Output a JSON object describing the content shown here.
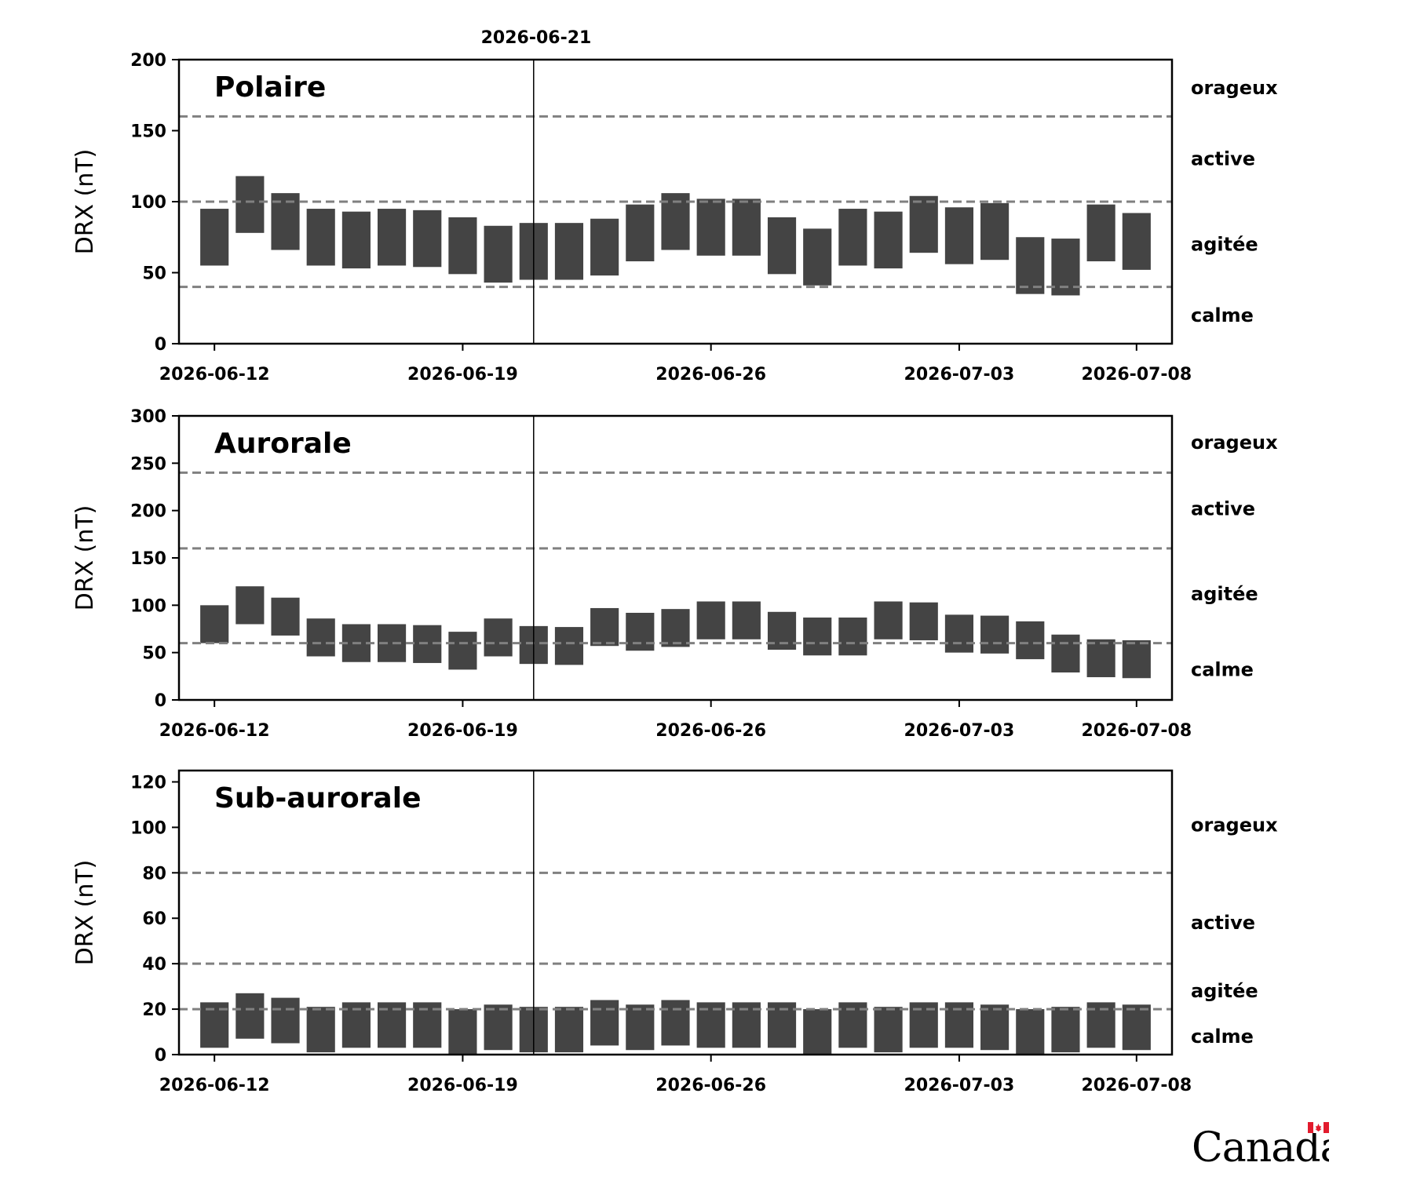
{
  "header": {
    "marker_label": "2026-06-21"
  },
  "brand": {
    "wordmark_text": "Canada",
    "flag_color": "#e21b2d"
  },
  "style": {
    "bar_color": "#444444",
    "threshold_color": "#808080"
  },
  "chart_data": [
    {
      "type": "bar",
      "title": "Polaire",
      "ylabel": "DRX (nT)",
      "ylim": [
        0,
        200
      ],
      "yticks": [
        0,
        50,
        100,
        150,
        200
      ],
      "xlim": [
        "2026-06-11",
        "2026-07-09"
      ],
      "xticks": [
        "2026-06-12",
        "2026-06-19",
        "2026-06-26",
        "2026-07-03",
        "2026-07-08"
      ],
      "marker_date": "2026-06-21",
      "thresholds": [
        40,
        100,
        160
      ],
      "zones": [
        {
          "label": "orageux",
          "value": 180
        },
        {
          "label": "active",
          "value": 130
        },
        {
          "label": "agitée",
          "value": 70
        },
        {
          "label": "calme",
          "value": 20
        }
      ],
      "bars": [
        {
          "date": "2026-06-12",
          "low": 55,
          "high": 95
        },
        {
          "date": "2026-06-13",
          "low": 78,
          "high": 118
        },
        {
          "date": "2026-06-14",
          "low": 66,
          "high": 106
        },
        {
          "date": "2026-06-15",
          "low": 55,
          "high": 95
        },
        {
          "date": "2026-06-16",
          "low": 53,
          "high": 93
        },
        {
          "date": "2026-06-17",
          "low": 55,
          "high": 95
        },
        {
          "date": "2026-06-18",
          "low": 54,
          "high": 94
        },
        {
          "date": "2026-06-19",
          "low": 49,
          "high": 89
        },
        {
          "date": "2026-06-20",
          "low": 43,
          "high": 83
        },
        {
          "date": "2026-06-21",
          "low": 45,
          "high": 85
        },
        {
          "date": "2026-06-22",
          "low": 45,
          "high": 85
        },
        {
          "date": "2026-06-23",
          "low": 48,
          "high": 88
        },
        {
          "date": "2026-06-24",
          "low": 58,
          "high": 98
        },
        {
          "date": "2026-06-25",
          "low": 66,
          "high": 106
        },
        {
          "date": "2026-06-26",
          "low": 62,
          "high": 102
        },
        {
          "date": "2026-06-27",
          "low": 62,
          "high": 102
        },
        {
          "date": "2026-06-28",
          "low": 49,
          "high": 89
        },
        {
          "date": "2026-06-29",
          "low": 41,
          "high": 81
        },
        {
          "date": "2026-06-30",
          "low": 55,
          "high": 95
        },
        {
          "date": "2026-07-01",
          "low": 53,
          "high": 93
        },
        {
          "date": "2026-07-02",
          "low": 64,
          "high": 104
        },
        {
          "date": "2026-07-03",
          "low": 56,
          "high": 96
        },
        {
          "date": "2026-07-04",
          "low": 59,
          "high": 99
        },
        {
          "date": "2026-07-05",
          "low": 35,
          "high": 75
        },
        {
          "date": "2026-07-06",
          "low": 34,
          "high": 74
        },
        {
          "date": "2026-07-07",
          "low": 58,
          "high": 98
        },
        {
          "date": "2026-07-08",
          "low": 52,
          "high": 92
        }
      ]
    },
    {
      "type": "bar",
      "title": "Aurorale",
      "ylabel": "DRX (nT)",
      "ylim": [
        0,
        300
      ],
      "yticks": [
        0,
        50,
        100,
        150,
        200,
        250,
        300
      ],
      "xlim": [
        "2026-06-11",
        "2026-07-09"
      ],
      "xticks": [
        "2026-06-12",
        "2026-06-19",
        "2026-06-26",
        "2026-07-03",
        "2026-07-08"
      ],
      "marker_date": "2026-06-21",
      "thresholds": [
        60,
        160,
        240
      ],
      "zones": [
        {
          "label": "orageux",
          "value": 272
        },
        {
          "label": "active",
          "value": 202
        },
        {
          "label": "agitée",
          "value": 112
        },
        {
          "label": "calme",
          "value": 32
        }
      ],
      "bars": [
        {
          "date": "2026-06-12",
          "low": 60,
          "high": 100
        },
        {
          "date": "2026-06-13",
          "low": 80,
          "high": 120
        },
        {
          "date": "2026-06-14",
          "low": 68,
          "high": 108
        },
        {
          "date": "2026-06-15",
          "low": 46,
          "high": 86
        },
        {
          "date": "2026-06-16",
          "low": 40,
          "high": 80
        },
        {
          "date": "2026-06-17",
          "low": 40,
          "high": 80
        },
        {
          "date": "2026-06-18",
          "low": 39,
          "high": 79
        },
        {
          "date": "2026-06-19",
          "low": 32,
          "high": 72
        },
        {
          "date": "2026-06-20",
          "low": 46,
          "high": 86
        },
        {
          "date": "2026-06-21",
          "low": 38,
          "high": 78
        },
        {
          "date": "2026-06-22",
          "low": 37,
          "high": 77
        },
        {
          "date": "2026-06-23",
          "low": 57,
          "high": 97
        },
        {
          "date": "2026-06-24",
          "low": 52,
          "high": 92
        },
        {
          "date": "2026-06-25",
          "low": 56,
          "high": 96
        },
        {
          "date": "2026-06-26",
          "low": 64,
          "high": 104
        },
        {
          "date": "2026-06-27",
          "low": 64,
          "high": 104
        },
        {
          "date": "2026-06-28",
          "low": 53,
          "high": 93
        },
        {
          "date": "2026-06-29",
          "low": 47,
          "high": 87
        },
        {
          "date": "2026-06-30",
          "low": 47,
          "high": 87
        },
        {
          "date": "2026-07-01",
          "low": 64,
          "high": 104
        },
        {
          "date": "2026-07-02",
          "low": 63,
          "high": 103
        },
        {
          "date": "2026-07-03",
          "low": 50,
          "high": 90
        },
        {
          "date": "2026-07-04",
          "low": 49,
          "high": 89
        },
        {
          "date": "2026-07-05",
          "low": 43,
          "high": 83
        },
        {
          "date": "2026-07-06",
          "low": 29,
          "high": 69
        },
        {
          "date": "2026-07-07",
          "low": 24,
          "high": 64
        },
        {
          "date": "2026-07-08",
          "low": 23,
          "high": 63
        }
      ]
    },
    {
      "type": "bar",
      "title": "Sub-aurorale",
      "ylabel": "DRX (nT)",
      "ylim": [
        0,
        125
      ],
      "yticks": [
        0,
        20,
        40,
        60,
        80,
        100,
        120
      ],
      "xlim": [
        "2026-06-11",
        "2026-07-09"
      ],
      "xticks": [
        "2026-06-12",
        "2026-06-19",
        "2026-06-26",
        "2026-07-03",
        "2026-07-08"
      ],
      "marker_date": "2026-06-21",
      "thresholds": [
        20,
        40,
        80
      ],
      "zones": [
        {
          "label": "orageux",
          "value": 101
        },
        {
          "label": "active",
          "value": 58
        },
        {
          "label": "agitée",
          "value": 28
        },
        {
          "label": "calme",
          "value": 8
        }
      ],
      "bars": [
        {
          "date": "2026-06-12",
          "low": 3,
          "high": 23
        },
        {
          "date": "2026-06-13",
          "low": 7,
          "high": 27
        },
        {
          "date": "2026-06-14",
          "low": 5,
          "high": 25
        },
        {
          "date": "2026-06-15",
          "low": 1,
          "high": 21
        },
        {
          "date": "2026-06-16",
          "low": 3,
          "high": 23
        },
        {
          "date": "2026-06-17",
          "low": 3,
          "high": 23
        },
        {
          "date": "2026-06-18",
          "low": 3,
          "high": 23
        },
        {
          "date": "2026-06-19",
          "low": 0,
          "high": 20
        },
        {
          "date": "2026-06-20",
          "low": 2,
          "high": 22
        },
        {
          "date": "2026-06-21",
          "low": 1,
          "high": 21
        },
        {
          "date": "2026-06-22",
          "low": 1,
          "high": 21
        },
        {
          "date": "2026-06-23",
          "low": 4,
          "high": 24
        },
        {
          "date": "2026-06-24",
          "low": 2,
          "high": 22
        },
        {
          "date": "2026-06-25",
          "low": 4,
          "high": 24
        },
        {
          "date": "2026-06-26",
          "low": 3,
          "high": 23
        },
        {
          "date": "2026-06-27",
          "low": 3,
          "high": 23
        },
        {
          "date": "2026-06-28",
          "low": 3,
          "high": 23
        },
        {
          "date": "2026-06-29",
          "low": 0,
          "high": 20
        },
        {
          "date": "2026-06-30",
          "low": 3,
          "high": 23
        },
        {
          "date": "2026-07-01",
          "low": 1,
          "high": 21
        },
        {
          "date": "2026-07-02",
          "low": 3,
          "high": 23
        },
        {
          "date": "2026-07-03",
          "low": 3,
          "high": 23
        },
        {
          "date": "2026-07-04",
          "low": 2,
          "high": 22
        },
        {
          "date": "2026-07-05",
          "low": 0,
          "high": 20
        },
        {
          "date": "2026-07-06",
          "low": 1,
          "high": 21
        },
        {
          "date": "2026-07-07",
          "low": 3,
          "high": 23
        },
        {
          "date": "2026-07-08",
          "low": 2,
          "high": 22
        }
      ]
    }
  ]
}
